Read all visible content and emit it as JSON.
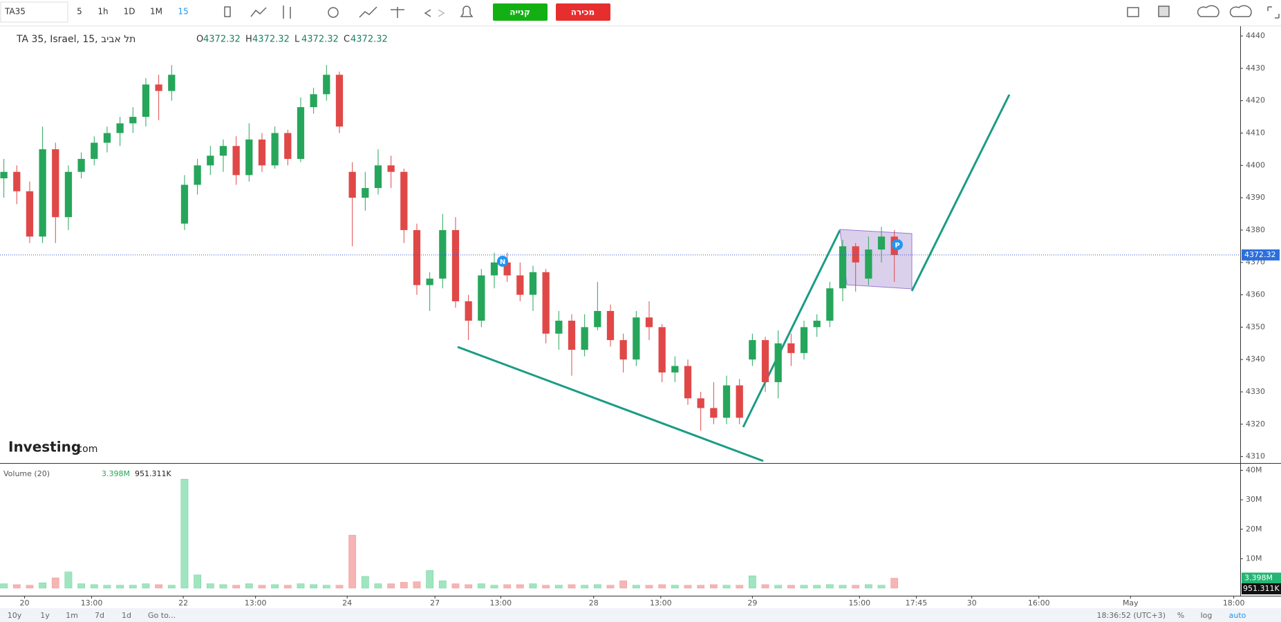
{
  "toolbar": {
    "symbol": "TA35",
    "intervals": [
      "5",
      "1h",
      "1D",
      "1M",
      "15"
    ],
    "buy": "קנייה",
    "sell": "מכירה"
  },
  "bottom_bar": {
    "ranges": [
      "10y",
      "1y",
      "1m",
      "7d",
      "1d"
    ],
    "goto": "Go to...",
    "clock": "18:36:52 (UTC+3)",
    "percent": "%",
    "log": "log",
    "auto": "auto"
  },
  "watermark": {
    "brand": "Investing",
    "suffix": ".com"
  },
  "chart_data": {
    "type": "candlestick",
    "title": "TA 35, Israel, 15, תל אביב",
    "ohlc_legend": [
      {
        "label": "O",
        "value": "4372.32"
      },
      {
        "label": "H",
        "value": "4372.32"
      },
      {
        "label": "L",
        "value": "4372.32"
      },
      {
        "label": "C",
        "value": "4372.32"
      }
    ],
    "markers": [
      "N",
      "P"
    ],
    "up_color": "#26a65b",
    "down_color": "#e04848",
    "xlim": [
      -0.3,
      95.8
    ],
    "xticks": [
      {
        "value": 1.6,
        "label": "20"
      },
      {
        "value": 6.8,
        "label": "13:00"
      },
      {
        "value": 13.9,
        "label": "22"
      },
      {
        "value": 19.5,
        "label": "13:00"
      },
      {
        "value": 26.6,
        "label": "24"
      },
      {
        "value": 33.4,
        "label": "27"
      },
      {
        "value": 38.5,
        "label": "13:00"
      },
      {
        "value": 45.7,
        "label": "28"
      },
      {
        "value": 50.9,
        "label": "13:00"
      },
      {
        "value": 58,
        "label": "29"
      },
      {
        "value": 66.3,
        "label": "15:00"
      },
      {
        "value": 70.7,
        "label": "17:45"
      },
      {
        "value": 75,
        "label": "30"
      },
      {
        "value": 80.2,
        "label": "16:00"
      },
      {
        "value": 87.3,
        "label": "May"
      },
      {
        "value": 95.3,
        "label": "18:00"
      }
    ],
    "ylim": [
      4308,
      4443
    ],
    "yticks": [
      4310,
      4320,
      4330,
      4340,
      4350,
      4360,
      4370,
      4380,
      4390,
      4400,
      4410,
      4420,
      4430,
      4440
    ],
    "grid": false,
    "candles": {
      "ohlc": [
        [
          4396,
          4402,
          4390,
          4398
        ],
        [
          4398,
          4400,
          4388,
          4392
        ],
        [
          4392,
          4395,
          4376,
          4378
        ],
        [
          4378,
          4412,
          4376,
          4405
        ],
        [
          4405,
          4407,
          4376,
          4384
        ],
        [
          4384,
          4400,
          4380,
          4398
        ],
        [
          4398,
          4404,
          4396,
          4402
        ],
        [
          4402,
          4409,
          4400,
          4407
        ],
        [
          4407,
          4412,
          4404,
          4410
        ],
        [
          4410,
          4415,
          4406,
          4413
        ],
        [
          4413,
          4418,
          4410,
          4415
        ],
        [
          4415,
          4427,
          4412,
          4425
        ],
        [
          4425,
          4428,
          4414,
          4423
        ],
        [
          4423,
          4431,
          4420,
          4428
        ],
        [
          4382,
          4397,
          4380,
          4394
        ],
        [
          4394,
          4402,
          4391,
          4400
        ],
        [
          4400,
          4406,
          4397,
          4403
        ],
        [
          4403,
          4408,
          4398,
          4406
        ],
        [
          4406,
          4409,
          4394,
          4397
        ],
        [
          4397,
          4413,
          4395,
          4408
        ],
        [
          4408,
          4410,
          4398,
          4400
        ],
        [
          4400,
          4412,
          4399,
          4410
        ],
        [
          4410,
          4411,
          4400,
          4402
        ],
        [
          4402,
          4421,
          4401,
          4418
        ],
        [
          4418,
          4424,
          4416,
          4422
        ],
        [
          4422,
          4431,
          4420,
          4428
        ],
        [
          4428,
          4429,
          4410,
          4412
        ],
        [
          4398,
          4401,
          4375,
          4390
        ],
        [
          4390,
          4398,
          4386,
          4393
        ],
        [
          4393,
          4405,
          4391,
          4400
        ],
        [
          4400,
          4403,
          4393,
          4398
        ],
        [
          4398,
          4399,
          4376,
          4380
        ],
        [
          4380,
          4382,
          4360,
          4363
        ],
        [
          4363,
          4367,
          4355,
          4365
        ],
        [
          4365,
          4385,
          4362,
          4380
        ],
        [
          4380,
          4384,
          4356,
          4358
        ],
        [
          4358,
          4360,
          4346,
          4352
        ],
        [
          4352,
          4368,
          4350,
          4366
        ],
        [
          4366,
          4373,
          4362,
          4370
        ],
        [
          4370,
          4373,
          4364,
          4366
        ],
        [
          4366,
          4370,
          4358,
          4360
        ],
        [
          4360,
          4369,
          4355,
          4367
        ],
        [
          4367,
          4368,
          4345,
          4348
        ],
        [
          4348,
          4355,
          4343,
          4352
        ],
        [
          4352,
          4354,
          4335,
          4343
        ],
        [
          4343,
          4354,
          4341,
          4350
        ],
        [
          4350,
          4364,
          4349,
          4355
        ],
        [
          4355,
          4357,
          4344,
          4346
        ],
        [
          4346,
          4348,
          4336,
          4340
        ],
        [
          4340,
          4355,
          4338,
          4353
        ],
        [
          4353,
          4358,
          4346,
          4350
        ],
        [
          4350,
          4351,
          4333,
          4336
        ],
        [
          4336,
          4341,
          4333,
          4338
        ],
        [
          4338,
          4340,
          4326,
          4328
        ],
        [
          4328,
          4330,
          4318,
          4325
        ],
        [
          4325,
          4333,
          4320,
          4322
        ],
        [
          4322,
          4335,
          4320,
          4332
        ],
        [
          4332,
          4334,
          4320,
          4322
        ],
        [
          4340,
          4348,
          4338,
          4346
        ],
        [
          4346,
          4347,
          4330,
          4333
        ],
        [
          4333,
          4349,
          4328,
          4345
        ],
        [
          4345,
          4348,
          4338,
          4342
        ],
        [
          4342,
          4352,
          4340,
          4350
        ],
        [
          4350,
          4354,
          4347,
          4352
        ],
        [
          4352,
          4364,
          4350,
          4362
        ],
        [
          4362,
          4377,
          4358,
          4375
        ],
        [
          4375,
          4376,
          4361,
          4370
        ],
        [
          4365,
          4378,
          4363,
          4374
        ],
        [
          4374,
          4381,
          4370,
          4378
        ],
        [
          4378,
          4380,
          4364,
          4372.32
        ]
      ]
    },
    "volume": {
      "name": "Volume (20)",
      "ma_label": "951.311K",
      "up_color": "#9fe5c0",
      "down_color": "#f6b4b4",
      "ylim": [
        0,
        42000000
      ],
      "yticks": [
        {
          "value": 10000000,
          "label": "10M"
        },
        {
          "value": 20000000,
          "label": "20M"
        },
        {
          "value": 30000000,
          "label": "30M"
        },
        {
          "value": 40000000,
          "label": "40M"
        }
      ],
      "values": [
        1500000,
        1200000,
        1000000,
        1800000,
        3500000,
        5500000,
        1500000,
        1200000,
        1000000,
        1000000,
        1000000,
        1500000,
        1200000,
        1000000,
        37000000,
        4500000,
        1500000,
        1200000,
        1000000,
        1500000,
        1000000,
        1200000,
        1000000,
        1500000,
        1200000,
        1000000,
        1000000,
        18000000,
        4000000,
        1500000,
        1500000,
        2000000,
        2200000,
        6000000,
        2500000,
        1500000,
        1200000,
        1500000,
        1000000,
        1200000,
        1200000,
        1500000,
        1000000,
        1000000,
        1200000,
        1000000,
        1200000,
        1000000,
        2500000,
        1000000,
        1000000,
        1200000,
        1000000,
        1000000,
        1000000,
        1200000,
        1000000,
        1000000,
        4200000,
        1200000,
        1000000,
        1000000,
        1000000,
        1000000,
        1200000,
        1000000,
        1000000,
        1200000,
        1000000,
        3398000
      ],
      "value_labels": [
        null,
        null,
        null,
        null,
        null,
        null,
        null,
        null,
        null,
        null,
        null,
        null,
        null,
        null,
        null,
        null,
        null,
        null,
        null,
        null,
        null,
        null,
        null,
        null,
        null,
        null,
        null,
        null,
        null,
        null,
        null,
        null,
        null,
        null,
        null,
        null,
        null,
        null,
        null,
        null,
        null,
        null,
        null,
        null,
        null,
        null,
        null,
        null,
        null,
        null,
        null,
        null,
        null,
        null,
        null,
        null,
        null,
        null,
        null,
        null,
        null,
        null,
        null,
        null,
        null,
        null,
        null,
        null,
        null,
        "3.398M"
      ]
    }
  }
}
